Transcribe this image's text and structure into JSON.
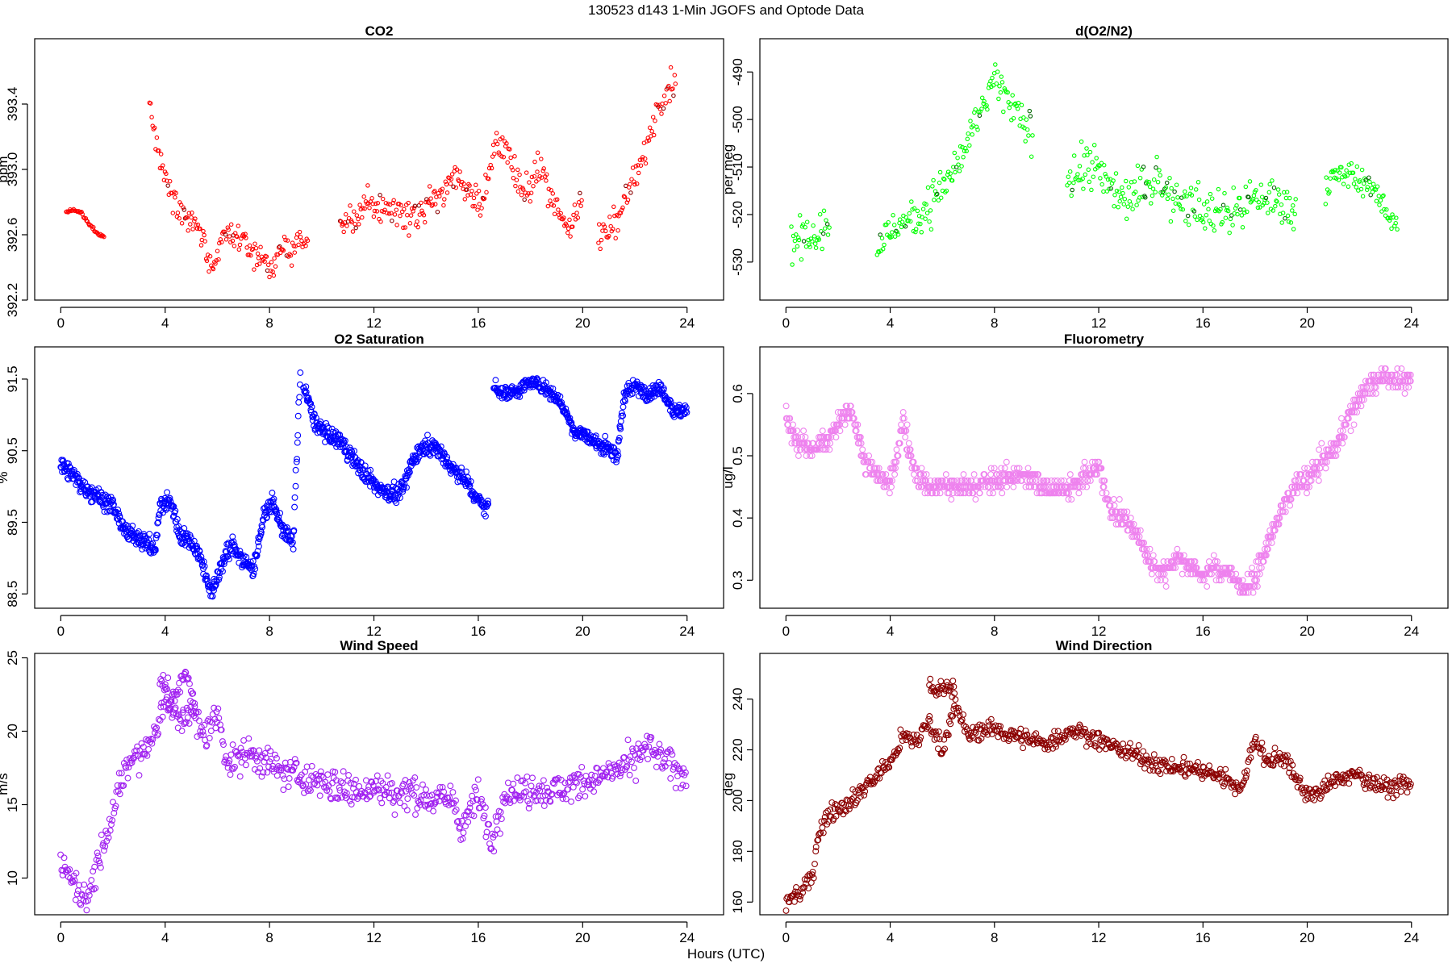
{
  "figure_title": "130523   d143   1-Min  JGOFS and Optode Data",
  "x_axis_label": "Hours (UTC)",
  "chart_data": [
    {
      "type": "scatter",
      "title": "CO2",
      "xlabel": "",
      "ylabel": "ppm",
      "xlim": [
        -1,
        25.4
      ],
      "ylim": [
        392.2,
        393.8
      ],
      "xticks": [
        0,
        4,
        8,
        12,
        16,
        20,
        24
      ],
      "yticks": [
        392.2,
        392.6,
        393.0,
        393.4
      ],
      "ytick_labels": [
        "392.2",
        "392.6",
        "393.0",
        "393.4"
      ],
      "grid": false,
      "marker": "open-circle",
      "color": "#ff0000",
      "accent": "#8b0000",
      "series": [
        {
          "segments": [
            {
              "x": [
                0.2,
                0.5,
                0.8,
                1.1,
                1.4,
                1.7
              ],
              "y": [
                392.74,
                392.75,
                392.73,
                392.66,
                392.61,
                392.59
              ],
              "jitter": 0.01
            },
            {
              "x": [
                3.4,
                3.8,
                4.3,
                4.8,
                5.3,
                5.8,
                6.2,
                6.8,
                7.4,
                8.0,
                8.5,
                9.0,
                9.5
              ],
              "y": [
                393.4,
                393.05,
                392.85,
                392.7,
                392.65,
                392.33,
                392.6,
                392.58,
                392.5,
                392.4,
                392.5,
                392.54,
                392.55
              ],
              "jitter": 0.08
            },
            {
              "x": [
                10.7,
                11.2,
                11.8,
                12.5,
                13.2,
                13.8,
                14.4,
                15.0,
                15.6,
                16.2,
                16.7,
                17.2,
                17.8,
                18.4,
                18.9,
                19.5,
                20.0
              ],
              "y": [
                392.65,
                392.68,
                392.78,
                392.76,
                392.72,
                392.73,
                392.82,
                392.96,
                392.88,
                392.8,
                393.2,
                393.05,
                392.82,
                393.05,
                392.78,
                392.65,
                392.8
              ],
              "jitter": 0.1
            },
            {
              "x": [
                20.6,
                21.0,
                21.5,
                22.0,
                22.5,
                22.9,
                23.3,
                23.6
              ],
              "y": [
                392.55,
                392.65,
                392.75,
                392.95,
                393.15,
                393.4,
                393.5,
                393.55
              ],
              "jitter": 0.1
            }
          ],
          "n_per_hour": 26
        }
      ]
    },
    {
      "type": "scatter",
      "title": "d(O2/N2)",
      "xlabel": "",
      "ylabel": "per meg",
      "xlim": [
        -1,
        25.4
      ],
      "ylim": [
        -538,
        -483
      ],
      "xticks": [
        0,
        4,
        8,
        12,
        16,
        20,
        24
      ],
      "yticks": [
        -530,
        -520,
        -510,
        -500,
        -490
      ],
      "ytick_labels": [
        "-530",
        "-520",
        "-510",
        "-500",
        "-490"
      ],
      "grid": false,
      "marker": "open-circle",
      "color": "#00ff00",
      "accent": "#006400",
      "series": [
        {
          "segments": [
            {
              "x": [
                0.2,
                0.7,
                1.2,
                1.7
              ],
              "y": [
                -526,
                -526,
                -524,
                -522
              ],
              "jitter": 4
            },
            {
              "x": [
                3.5,
                4.0,
                4.5,
                5.0,
                5.5,
                6.0,
                6.5,
                7.0,
                7.5,
                8.0,
                8.5,
                9.0,
                9.5
              ],
              "y": [
                -527,
                -524,
                -521,
                -520,
                -518,
                -514,
                -510,
                -505,
                -498,
                -492,
                -496,
                -500,
                -505
              ],
              "jitter": 4
            },
            {
              "x": [
                10.8,
                11.3,
                11.8,
                12.4,
                13.0,
                13.6,
                14.2,
                14.8,
                15.5,
                16.2,
                16.9,
                17.6,
                18.3,
                19.0,
                19.6
              ],
              "y": [
                -513,
                -510,
                -510,
                -514,
                -516,
                -515,
                -512,
                -516,
                -518,
                -520,
                -519,
                -518,
                -516,
                -518,
                -519
              ],
              "jitter": 5
            },
            {
              "x": [
                20.7,
                21.2,
                21.8,
                22.4,
                23.0,
                23.5
              ],
              "y": [
                -514,
                -512,
                -512,
                -514,
                -519,
                -522
              ],
              "jitter": 3
            }
          ],
          "n_per_hour": 26
        }
      ]
    },
    {
      "type": "scatter",
      "title": "O2 Saturation",
      "xlabel": "",
      "ylabel": "%",
      "xlim": [
        -1,
        25.4
      ],
      "ylim": [
        88.3,
        91.95
      ],
      "xticks": [
        0,
        4,
        8,
        12,
        16,
        20,
        24
      ],
      "yticks": [
        88.5,
        89.5,
        90.5,
        91.5
      ],
      "ytick_labels": [
        "88.5",
        "89.5",
        "90.5",
        "91.5"
      ],
      "grid": false,
      "marker": "open-circle",
      "color": "#0000ff",
      "accent": "#0000ff",
      "series": [
        {
          "segments": [
            {
              "x": [
                0.0,
                0.5,
                1.0,
                1.5,
                2.0,
                2.5,
                3.0,
                3.6,
                3.8,
                4.2,
                4.6,
                5.0,
                5.4,
                5.8,
                6.2,
                6.6,
                7.0,
                7.4,
                7.8,
                8.1,
                8.5,
                8.9,
                9.2
              ],
              "y": [
                90.3,
                90.15,
                89.95,
                89.85,
                89.7,
                89.35,
                89.3,
                89.1,
                89.7,
                89.8,
                89.3,
                89.25,
                88.95,
                88.5,
                88.95,
                89.2,
                88.95,
                88.85,
                89.6,
                89.8,
                89.4,
                89.2,
                91.7
              ],
              "jitter": 0.12
            },
            {
              "x": [
                9.3,
                9.8,
                10.3,
                10.8,
                11.3,
                11.8,
                12.3,
                12.8,
                13.1,
                13.5,
                14.0,
                14.5,
                15.0,
                15.5,
                16.0,
                16.4
              ],
              "y": [
                91.4,
                90.85,
                90.7,
                90.6,
                90.35,
                90.1,
                89.95,
                89.9,
                89.95,
                90.4,
                90.6,
                90.5,
                90.25,
                90.1,
                89.8,
                89.7
              ],
              "jitter": 0.12
            },
            {
              "x": [
                16.6,
                17.0,
                17.5,
                18.0,
                18.5,
                19.0,
                19.4,
                19.7,
                20.0,
                20.5,
                21.0,
                21.3,
                21.6,
                22.0,
                22.5,
                23.0,
                23.5,
                24.0
              ],
              "y": [
                91.4,
                91.3,
                91.35,
                91.45,
                91.4,
                91.25,
                91.0,
                90.75,
                90.75,
                90.6,
                90.55,
                90.35,
                91.3,
                91.4,
                91.3,
                91.4,
                91.05,
                91.05
              ],
              "jitter": 0.1
            }
          ],
          "n_per_hour": 55
        }
      ]
    },
    {
      "type": "scatter",
      "title": "Fluorometry",
      "xlabel": "",
      "ylabel": "ug/l",
      "xlim": [
        -1,
        25.4
      ],
      "ylim": [
        0.255,
        0.675
      ],
      "xticks": [
        0,
        4,
        8,
        12,
        16,
        20,
        24
      ],
      "yticks": [
        0.3,
        0.4,
        0.5,
        0.6
      ],
      "ytick_labels": [
        "0.3",
        "0.4",
        "0.5",
        "0.6"
      ],
      "grid": false,
      "marker": "open-circle",
      "color": "#ee82ee",
      "accent": "#ee82ee",
      "series": [
        {
          "segments": [
            {
              "x": [
                0.0,
                0.5,
                1.0,
                1.5,
                2.0,
                2.5,
                3.0,
                3.5,
                4.0,
                4.5,
                5.0,
                5.5,
                6.0,
                7.0,
                8.0,
                9.0,
                10.0,
                11.0,
                12.0,
                12.5,
                13.0,
                13.5,
                14.0,
                14.5,
                15.0,
                15.5,
                16.0,
                16.5,
                17.0,
                17.5,
                18.0,
                18.5,
                19.0,
                19.5,
                20.0,
                20.5,
                21.0,
                21.5,
                22.0,
                22.5,
                23.0,
                23.5,
                24.0
              ],
              "y": [
                0.56,
                0.52,
                0.51,
                0.52,
                0.55,
                0.58,
                0.49,
                0.47,
                0.45,
                0.55,
                0.47,
                0.45,
                0.45,
                0.45,
                0.46,
                0.47,
                0.45,
                0.45,
                0.48,
                0.41,
                0.4,
                0.37,
                0.33,
                0.31,
                0.34,
                0.32,
                0.31,
                0.32,
                0.31,
                0.29,
                0.3,
                0.36,
                0.41,
                0.45,
                0.46,
                0.49,
                0.51,
                0.55,
                0.59,
                0.62,
                0.63,
                0.62,
                0.62
              ],
              "jitter": 0.018,
              "quantize": 0.01
            }
          ],
          "n_per_hour": 48
        }
      ]
    },
    {
      "type": "scatter",
      "title": "Wind Speed",
      "xlabel": "",
      "ylabel": "m/s",
      "xlim": [
        -1,
        25.4
      ],
      "ylim": [
        7.5,
        25.3
      ],
      "xticks": [
        0,
        4,
        8,
        12,
        16,
        20,
        24
      ],
      "yticks": [
        10,
        15,
        20,
        25
      ],
      "ytick_labels": [
        "10",
        "15",
        "20",
        "25"
      ],
      "grid": false,
      "marker": "open-circle",
      "color": "#a020f0",
      "accent": "#a020f0",
      "series": [
        {
          "segments": [
            {
              "x": [
                0.0,
                0.5,
                1.0,
                1.5,
                2.0,
                2.5,
                3.0,
                3.5,
                4.0,
                4.5,
                5.0,
                5.5,
                6.0,
                6.5,
                7.0,
                8.0,
                9.0,
                10.0,
                11.0,
                12.0,
                13.0,
                14.0,
                15.0,
                15.3,
                16.0,
                16.5,
                17.0,
                18.0,
                19.0,
                20.0,
                21.0,
                22.0,
                22.5,
                23.0,
                24.0
              ],
              "y": [
                10.8,
                9.8,
                8.5,
                11.5,
                14.5,
                17.5,
                18.5,
                19.2,
                22.5,
                20.5,
                21.5,
                19.5,
                21.0,
                17.5,
                18.5,
                17.8,
                17.0,
                16.5,
                16.0,
                16.0,
                15.8,
                15.5,
                15.5,
                13.5,
                15.5,
                12.5,
                15.8,
                16.0,
                16.0,
                16.5,
                17.0,
                18.0,
                19.0,
                18.0,
                17.0
              ],
              "jitter": 1.1
            },
            {
              "x": [
                3.8,
                4.2,
                4.8,
                5.2
              ],
              "y": [
                23.8,
                22.0,
                23.8,
                21.0
              ],
              "jitter": 0.8
            }
          ],
          "n_per_hour": 30
        }
      ]
    },
    {
      "type": "scatter",
      "title": "Wind Direction",
      "xlabel": "",
      "ylabel": "deg",
      "xlim": [
        -1,
        25.4
      ],
      "ylim": [
        155,
        258
      ],
      "xticks": [
        0,
        4,
        8,
        12,
        16,
        20,
        24
      ],
      "yticks": [
        160,
        180,
        200,
        220,
        240
      ],
      "ytick_labels": [
        "160",
        "180",
        "200",
        "220",
        "240"
      ],
      "grid": false,
      "marker": "open-circle",
      "color": "#8b0000",
      "accent": "#8b0000",
      "series": [
        {
          "segments": [
            {
              "x": [
                0.0,
                0.5,
                1.0,
                1.2,
                1.6,
                2.0,
                2.5,
                3.0,
                3.5,
                4.0,
                4.5,
                5.0,
                5.5,
                6.0,
                6.5,
                7.0,
                7.5,
                8.0,
                9.0,
                10.0,
                11.0,
                12.0,
                13.0,
                14.0,
                15.0,
                16.0,
                17.0,
                17.5,
                18.0,
                18.5,
                19.0,
                19.5,
                20.0,
                20.5,
                21.0,
                22.0,
                23.0,
                24.0
              ],
              "y": [
                160,
                163,
                170,
                185,
                195,
                197,
                200,
                205,
                210,
                215,
                225,
                223,
                232,
                220,
                238,
                225,
                228,
                228,
                225,
                222,
                228,
                224,
                220,
                215,
                213,
                212,
                208,
                205,
                225,
                215,
                218,
                210,
                202,
                203,
                208,
                210,
                205,
                207
              ],
              "jitter": 3.5
            },
            {
              "x": [
                5.5,
                6.5
              ],
              "y": [
                245,
                243
              ],
              "jitter": 3
            }
          ],
          "n_per_hour": 30
        }
      ]
    }
  ]
}
